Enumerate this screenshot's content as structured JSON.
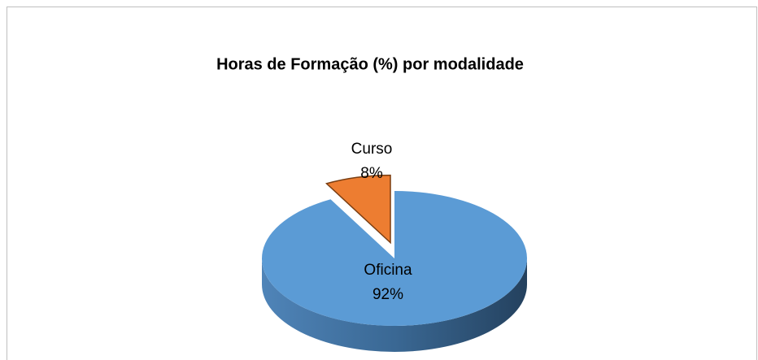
{
  "chart_data": {
    "type": "pie",
    "title": "Horas de Formação (%) por modalidade",
    "categories": [
      "Oficina",
      "Curso"
    ],
    "values": [
      92,
      8
    ],
    "value_labels": [
      "92%",
      "8%"
    ],
    "colors": [
      "#5b9bd5",
      "#ed7d31"
    ]
  }
}
